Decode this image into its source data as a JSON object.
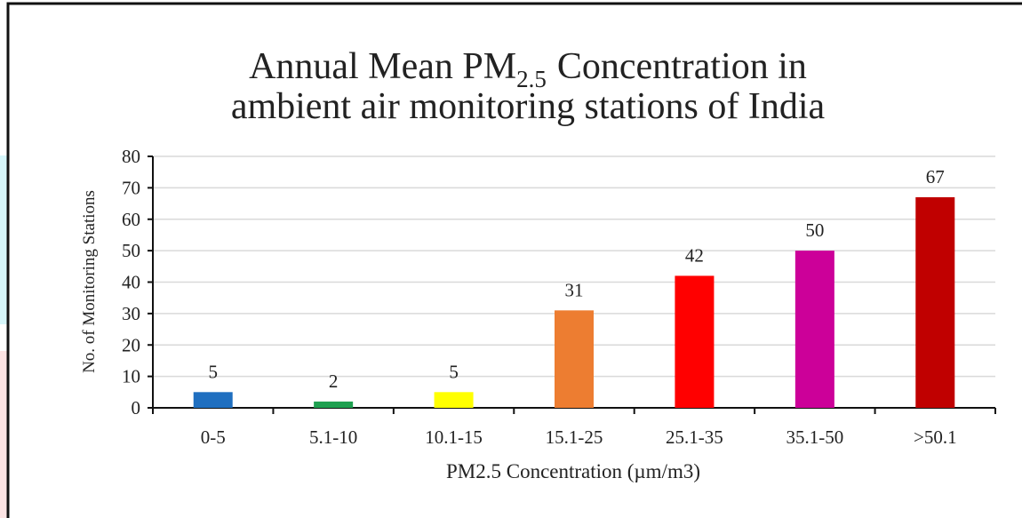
{
  "chart_data": {
    "type": "bar",
    "title_prefix": "Annual Mean PM",
    "title_subscript": "2.5",
    "title_suffix": "Concentration in",
    "title_line2": "ambient air monitoring stations of India",
    "x_label": "PM2.5 Concentration (µm/m3)",
    "y_label": "No. of Monitoring Stations",
    "categories": [
      "0-5",
      "5.1-10",
      "10.1-15",
      "15.1-25",
      "25.1-35",
      "35.1-50",
      ">50.1"
    ],
    "values": [
      5,
      2,
      5,
      31,
      42,
      50,
      67
    ],
    "colors": [
      "#1f6fc0",
      "#1fa050",
      "#ffff00",
      "#ed7d31",
      "#ff0000",
      "#cc0099",
      "#c00000"
    ],
    "ylim": [
      0,
      80
    ],
    "yticks": [
      0,
      10,
      20,
      30,
      40,
      50,
      60,
      70,
      80
    ],
    "grid": true
  }
}
